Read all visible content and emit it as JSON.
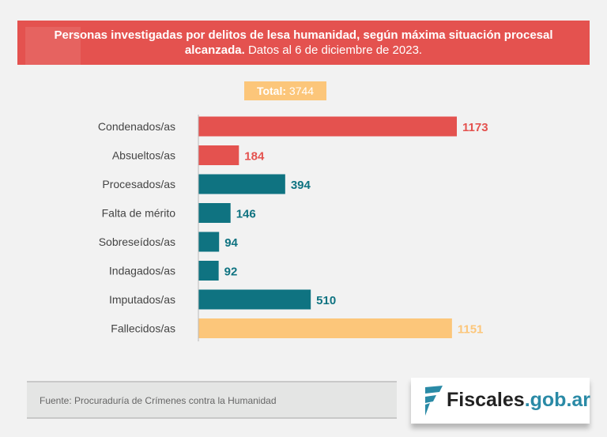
{
  "title_bold": "Personas investigadas por delitos de lesa humanidad, según máxima situación procesal alcanzada.",
  "title_rest": "Datos al 6 de diciembre de 2023.",
  "total_label": "Total:",
  "total_value": "3744",
  "source": "Fuente: Procuraduría de Crímenes contra la Humanidad",
  "logo": {
    "name": "Fiscales",
    "domain": ".gob.ar"
  },
  "colors": {
    "red": "#e4524f",
    "teal": "#0f7381",
    "yellow": "#fcc67a"
  },
  "chart_data": {
    "type": "bar",
    "orientation": "horizontal",
    "categories": [
      "Condenados/as",
      "Absueltos/as",
      "Procesados/as",
      "Falta de mérito",
      "Sobreseídos/as",
      "Indagados/as",
      "Imputados/as",
      "Fallecidos/as"
    ],
    "values": [
      1173,
      184,
      394,
      146,
      94,
      92,
      510,
      1151
    ],
    "bar_colors": [
      "#e4524f",
      "#e4524f",
      "#0f7381",
      "#0f7381",
      "#0f7381",
      "#0f7381",
      "#0f7381",
      "#fcc67a"
    ],
    "xlim": [
      0,
      1173
    ],
    "grid": false
  }
}
